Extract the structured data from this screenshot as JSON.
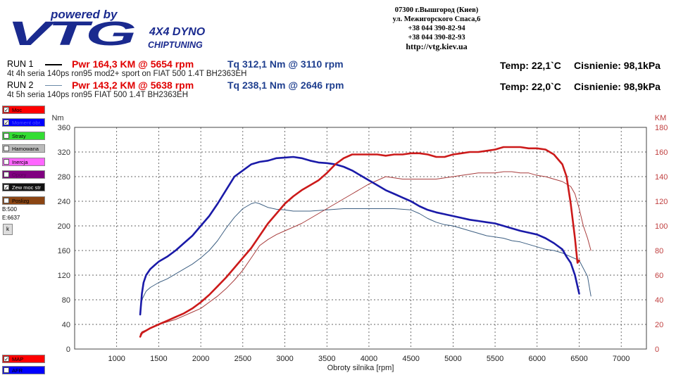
{
  "logo": {
    "tagline": "powered by",
    "brand": "VTG",
    "line1": "4X4 DYNO",
    "line2": "CHIPTUNING"
  },
  "address": {
    "line1": "07300 г.Вышгород (Киев)",
    "line2": "ул. Межигорского Спаса,6",
    "line3": "+38 044 390-82-94",
    "line4": "+38 044 390-82-93",
    "url": "http://vtg.kiev.ua"
  },
  "runs": [
    {
      "label": "RUN 1",
      "pwr": "Pwr  164,3 KM @ 5654 rpm",
      "tq": "Tq 312,1 Nm @ 3110 rpm",
      "desc": "4t 4h seria 140ps ron95 mod2+ sport on FIAT 500 1.4T BH2363EH",
      "temp": "Temp: 22,1`C",
      "pressure": "Cisnienie: 98,1kPa",
      "legend_color": "#000000"
    },
    {
      "label": "RUN 2",
      "pwr": "Pwr  143,2 KM @ 5638 rpm",
      "tq": "Tq 238,1 Nm @ 2646 rpm",
      "desc": "4t 5h seria 140ps ron95 FIAT 500 1.4T BH2363EH",
      "temp": "Temp: 22,0`C",
      "pressure": "Cisnienie: 98,9kPa",
      "legend_color": "#6a8aa8"
    }
  ],
  "panel": {
    "checkboxes": [
      {
        "label": "Moc",
        "checked": true,
        "color": "#ff0000",
        "text_color": "#000000"
      },
      {
        "label": "Moment obr.",
        "checked": true,
        "color": "#0000ff",
        "text_color": "#5050ff"
      },
      {
        "label": "Straty",
        "checked": false,
        "color": "#33dd33",
        "text_color": "#000000"
      },
      {
        "label": "Hamowana",
        "checked": false,
        "color": "#bbbbbb",
        "text_color": "#000000"
      },
      {
        "label": "Inercja",
        "checked": false,
        "color": "#ff66ff",
        "text_color": "#000000"
      },
      {
        "label": "Opory",
        "checked": false,
        "color": "#800080",
        "text_color": "#5a005a"
      },
      {
        "label": "Zew moc str",
        "checked": true,
        "color": "#111111",
        "text_color": "#ffffff"
      },
      {
        "label": "Poslizg",
        "checked": false,
        "color": "#8b4513",
        "text_color": "#000000"
      }
    ],
    "b_value": "B:500",
    "e_value": "E:6637",
    "k_button": "k",
    "bottom_checkboxes": [
      {
        "label": "MAP",
        "checked": true,
        "color": "#ff0000",
        "text_color": "#000000"
      },
      {
        "label": "AFR",
        "checked": false,
        "color": "#0000ff",
        "text_color": "#000000"
      }
    ]
  },
  "chart_data": {
    "type": "line",
    "xlabel": "Obroty silnika [rpm]",
    "ylabel_left": "Nm",
    "ylabel_right": "KM",
    "xlim": [
      500,
      7300
    ],
    "ylim_left": [
      0,
      360
    ],
    "ylim_right": [
      0,
      180
    ],
    "xticks": [
      1000,
      1500,
      2000,
      2500,
      3000,
      3500,
      4000,
      4500,
      5000,
      5500,
      6000,
      6500,
      7000
    ],
    "yticks_left": [
      0,
      40,
      80,
      120,
      160,
      200,
      240,
      280,
      320,
      360
    ],
    "yticks_right": [
      0,
      20,
      40,
      60,
      80,
      100,
      120,
      140,
      160,
      180
    ],
    "grid": true,
    "colors": {
      "torque_run1": "#1a1aa8",
      "power_run1": "#cc1a1a",
      "torque_run2": "#3d5f82",
      "power_run2": "#a83c3c",
      "axis_left": "#333333",
      "axis_right": "#c04040"
    },
    "series": [
      {
        "name": "",
        "axis": "left",
        "color": "#1a1aa8",
        "width": 2.6,
        "x": [
          1280,
          1300,
          1320,
          1350,
          1400,
          1450,
          1500,
          1600,
          1700,
          1800,
          1900,
          2000,
          2100,
          2200,
          2300,
          2400,
          2500,
          2600,
          2700,
          2800,
          2900,
          3000,
          3100,
          3200,
          3300,
          3400,
          3500,
          3600,
          3700,
          3800,
          3900,
          4000,
          4100,
          4200,
          4300,
          4400,
          4500,
          4600,
          4700,
          4800,
          4900,
          5000,
          5100,
          5200,
          5300,
          5400,
          5500,
          5600,
          5700,
          5800,
          5900,
          6000,
          6100,
          6200,
          6300,
          6350,
          6400,
          6450,
          6500
        ],
        "y": [
          56,
          90,
          108,
          120,
          130,
          136,
          142,
          150,
          160,
          172,
          184,
          200,
          216,
          236,
          258,
          280,
          290,
          300,
          304,
          306,
          310,
          311,
          312,
          310,
          306,
          303,
          302,
          300,
          296,
          290,
          282,
          274,
          266,
          258,
          252,
          246,
          240,
          232,
          226,
          222,
          219,
          216,
          213,
          210,
          208,
          206,
          204,
          200,
          196,
          192,
          189,
          186,
          180,
          172,
          162,
          150,
          140,
          120,
          90
        ]
      },
      {
        "name": "",
        "axis": "right",
        "color": "#cc1a1a",
        "width": 2.6,
        "x": [
          1280,
          1300,
          1350,
          1400,
          1500,
          1600,
          1700,
          1800,
          1900,
          2000,
          2100,
          2200,
          2300,
          2400,
          2500,
          2600,
          2700,
          2800,
          2900,
          3000,
          3100,
          3200,
          3300,
          3400,
          3500,
          3600,
          3700,
          3800,
          3900,
          4000,
          4100,
          4200,
          4300,
          4400,
          4500,
          4600,
          4700,
          4800,
          4900,
          5000,
          5100,
          5200,
          5300,
          5400,
          5500,
          5600,
          5700,
          5800,
          5900,
          6000,
          6100,
          6200,
          6300,
          6350,
          6400,
          6450,
          6480,
          6500
        ],
        "y": [
          10,
          13,
          15,
          17,
          20,
          23,
          26,
          29,
          33,
          38,
          44,
          51,
          58,
          66,
          74,
          82,
          92,
          102,
          110,
          118,
          124,
          129,
          133,
          137,
          143,
          150,
          155,
          158,
          158,
          158,
          158,
          157,
          158,
          158,
          159,
          159,
          158,
          156,
          156,
          158,
          159,
          160,
          160,
          161,
          162,
          164,
          164,
          164,
          163,
          163,
          162,
          158,
          150,
          140,
          118,
          90,
          70,
          72
        ]
      },
      {
        "name": "",
        "axis": "left",
        "color": "#3d5f82",
        "width": 1,
        "x": [
          1280,
          1300,
          1350,
          1400,
          1500,
          1600,
          1700,
          1800,
          1900,
          2000,
          2100,
          2200,
          2300,
          2400,
          2500,
          2600,
          2650,
          2700,
          2800,
          2900,
          3000,
          3100,
          3200,
          3300,
          3400,
          3500,
          3600,
          3700,
          3800,
          3900,
          4000,
          4100,
          4200,
          4300,
          4400,
          4500,
          4600,
          4700,
          4800,
          4900,
          5000,
          5100,
          5200,
          5300,
          5400,
          5500,
          5600,
          5700,
          5800,
          5900,
          6000,
          6100,
          6200,
          6300,
          6400,
          6500,
          6600,
          6640
        ],
        "y": [
          58,
          80,
          94,
          100,
          108,
          114,
          122,
          130,
          138,
          148,
          160,
          176,
          196,
          214,
          228,
          236,
          238,
          236,
          230,
          227,
          226,
          224,
          224,
          224,
          225,
          226,
          227,
          228,
          228,
          228,
          228,
          228,
          228,
          228,
          227,
          226,
          220,
          212,
          206,
          202,
          200,
          196,
          192,
          188,
          184,
          182,
          180,
          176,
          174,
          170,
          166,
          162,
          160,
          156,
          150,
          144,
          118,
          86
        ]
      },
      {
        "name": "",
        "axis": "right",
        "color": "#a83c3c",
        "width": 1,
        "x": [
          1280,
          1300,
          1400,
          1500,
          1600,
          1700,
          1800,
          1900,
          2000,
          2100,
          2200,
          2300,
          2400,
          2500,
          2600,
          2700,
          2800,
          2900,
          3000,
          3100,
          3200,
          3300,
          3400,
          3500,
          3600,
          3700,
          3800,
          3900,
          4000,
          4100,
          4200,
          4300,
          4400,
          4500,
          4600,
          4700,
          4800,
          4900,
          5000,
          5100,
          5200,
          5300,
          5400,
          5500,
          5600,
          5700,
          5800,
          5900,
          6000,
          6100,
          6200,
          6300,
          6400,
          6450,
          6500,
          6550,
          6600,
          6640
        ],
        "y": [
          12,
          14,
          17,
          20,
          22,
          24,
          27,
          30,
          33,
          38,
          43,
          49,
          56,
          64,
          74,
          84,
          89,
          93,
          96,
          99,
          102,
          106,
          110,
          114,
          118,
          122,
          126,
          130,
          134,
          137,
          140,
          139,
          138,
          138,
          138,
          138,
          138,
          139,
          140,
          141,
          142,
          143,
          143,
          143,
          144,
          144,
          143,
          143,
          141,
          140,
          138,
          136,
          132,
          126,
          114,
          100,
          90,
          80
        ]
      }
    ]
  }
}
